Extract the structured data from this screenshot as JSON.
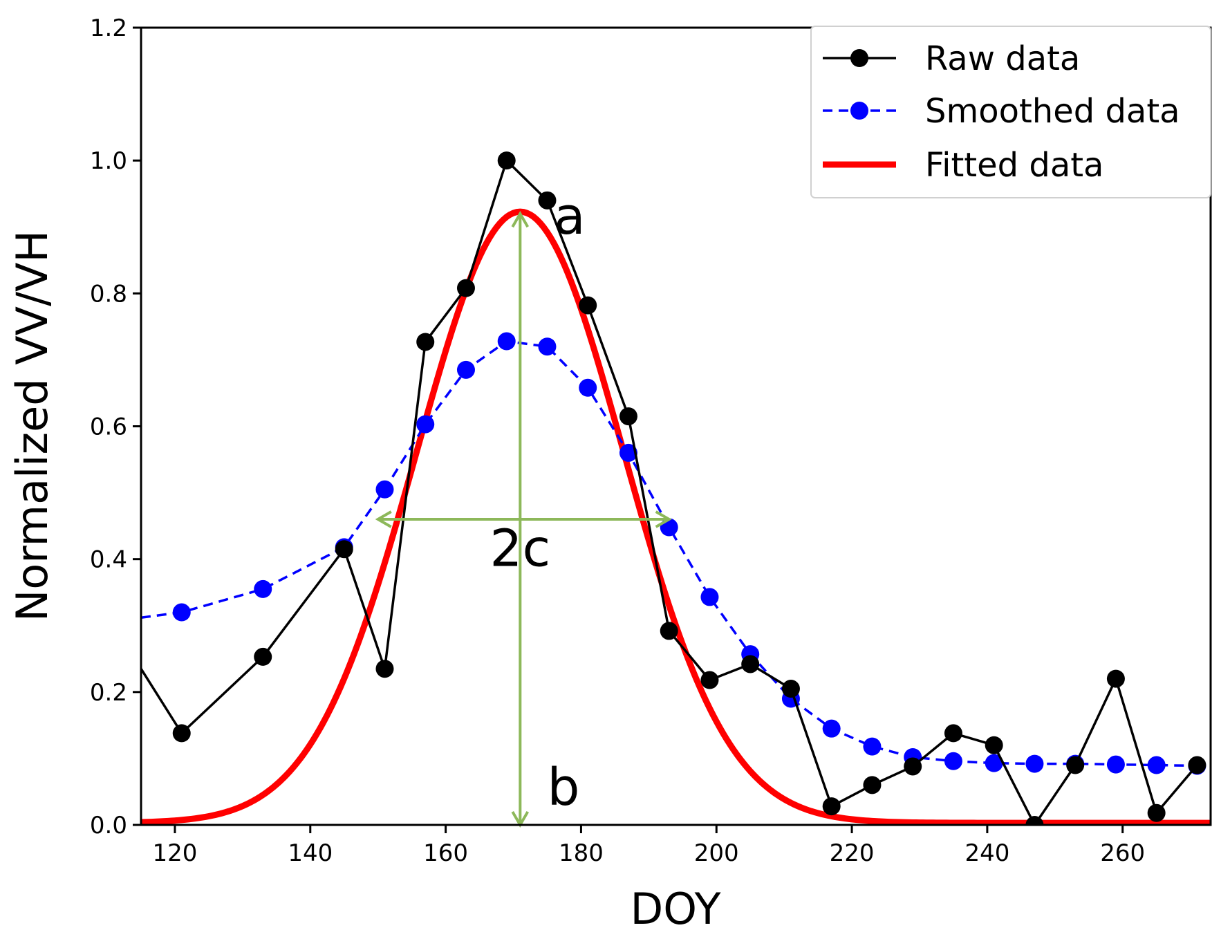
{
  "chart_data": {
    "type": "line",
    "title": "",
    "xlabel": "DOY",
    "ylabel": "Normalized VV/VH",
    "xlim": [
      115,
      273
    ],
    "ylim": [
      0.0,
      1.2
    ],
    "xticks": [
      120,
      140,
      160,
      180,
      200,
      220,
      240,
      260
    ],
    "xtick_labels": [
      "120",
      "140",
      "160",
      "180",
      "200",
      "220",
      "240",
      "260"
    ],
    "yticks": [
      0.0,
      0.2,
      0.4,
      0.6,
      0.8,
      1.0,
      1.2
    ],
    "ytick_labels": [
      "0.0",
      "0.2",
      "0.4",
      "0.6",
      "0.8",
      "1.0",
      "1.2"
    ],
    "legend_position": "top-right",
    "series": [
      {
        "name": "Raw data",
        "color": "#000000",
        "style": "solid-markers",
        "x": [
          115,
          121,
          133,
          145,
          151,
          157,
          163,
          169,
          175,
          181,
          187,
          193,
          199,
          205,
          211,
          217,
          223,
          229,
          235,
          241,
          247,
          253,
          259,
          265,
          271
        ],
        "y": [
          0.235,
          0.138,
          0.253,
          0.415,
          0.235,
          0.727,
          0.808,
          1.0,
          0.94,
          0.782,
          0.615,
          0.292,
          0.218,
          0.242,
          0.205,
          0.028,
          0.06,
          0.088,
          0.138,
          0.12,
          0.0,
          0.09,
          0.22,
          0.018,
          0.09
        ]
      },
      {
        "name": "Smoothed data",
        "color": "#0000ff",
        "style": "dashed-markers",
        "x": [
          115,
          121,
          133,
          145,
          151,
          157,
          163,
          169,
          175,
          181,
          187,
          193,
          199,
          205,
          211,
          217,
          223,
          229,
          235,
          241,
          247,
          253,
          259,
          265,
          271
        ],
        "y": [
          0.312,
          0.32,
          0.355,
          0.418,
          0.505,
          0.603,
          0.685,
          0.728,
          0.72,
          0.658,
          0.56,
          0.448,
          0.343,
          0.257,
          0.19,
          0.145,
          0.118,
          0.102,
          0.096,
          0.093,
          0.092,
          0.092,
          0.091,
          0.09,
          0.089
        ]
      },
      {
        "name": "Fitted data",
        "color": "#ff0000",
        "style": "solid-thick",
        "model": "gaussian",
        "a": 0.92,
        "b": 0.003,
        "center": 171,
        "sigma": 15.3
      }
    ],
    "annotations": [
      {
        "text": "a",
        "x": 176,
        "y": 0.89
      },
      {
        "text": "b",
        "x": 175,
        "y": 0.03
      },
      {
        "text": "2c",
        "x": 171,
        "y": 0.39
      }
    ],
    "arrows": [
      {
        "name": "vertical-arrow",
        "from": [
          171,
          0.0
        ],
        "to": [
          171,
          0.92
        ],
        "color": "#8db85a"
      },
      {
        "name": "horizontal-arrow",
        "from": [
          150,
          0.46
        ],
        "to": [
          193,
          0.46
        ],
        "color": "#8db85a"
      }
    ]
  }
}
